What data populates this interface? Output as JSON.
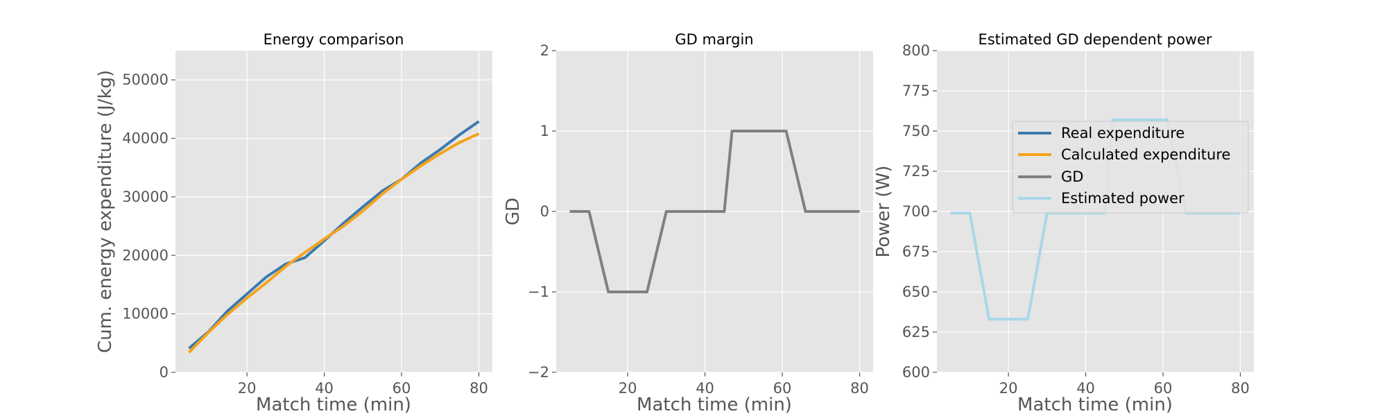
{
  "chart_data": [
    {
      "type": "line",
      "title": "Energy comparison",
      "xlabel": "Match time (min)",
      "ylabel": "Cum. energy expenditure (J/kg)",
      "xlim": [
        1.5,
        83.5
      ],
      "ylim": [
        0,
        55000
      ],
      "xticks": [
        20,
        40,
        60,
        80
      ],
      "xtick_labels": [
        "20",
        "40",
        "60",
        "80"
      ],
      "yticks": [
        0,
        10000,
        20000,
        30000,
        40000,
        50000
      ],
      "ytick_labels": [
        "0",
        "10000",
        "20000",
        "30000",
        "40000",
        "50000"
      ],
      "grid": true,
      "series": [
        {
          "name": "Real expenditure",
          "color": "#3a7ab0",
          "x": [
            5,
            10,
            15,
            20,
            25,
            30,
            35,
            40,
            45,
            50,
            55,
            60,
            65,
            70,
            75,
            80
          ],
          "y": [
            4100,
            6900,
            10500,
            13400,
            16300,
            18500,
            19600,
            22500,
            25500,
            28300,
            31000,
            33000,
            35800,
            38100,
            40600,
            42900
          ]
        },
        {
          "name": "Calculated expenditure",
          "color": "#f5a31a",
          "x": [
            5,
            10,
            15,
            20,
            25,
            30,
            35,
            40,
            45,
            50,
            55,
            60,
            65,
            70,
            75,
            80
          ],
          "y": [
            3400,
            6800,
            9900,
            12700,
            15300,
            18100,
            20500,
            22800,
            25000,
            27600,
            30500,
            33000,
            35300,
            37400,
            39300,
            40800
          ]
        }
      ]
    },
    {
      "type": "line",
      "title": "GD margin",
      "xlabel": "Match time (min)",
      "ylabel": "GD",
      "xlim": [
        1.5,
        83.5
      ],
      "ylim": [
        -2,
        2
      ],
      "xticks": [
        20,
        40,
        60,
        80
      ],
      "xtick_labels": [
        "20",
        "40",
        "60",
        "80"
      ],
      "yticks": [
        -2,
        -1,
        0,
        1,
        2
      ],
      "ytick_labels": [
        "−2",
        "−1",
        "0",
        "1",
        "2"
      ],
      "grid": true,
      "series": [
        {
          "name": "GD",
          "color": "#808080",
          "x": [
            5,
            10,
            15,
            20,
            25,
            30,
            35,
            40,
            45,
            47,
            50,
            55,
            61,
            66,
            70,
            75,
            80
          ],
          "y": [
            0,
            0,
            -1,
            -1,
            -1,
            0,
            0,
            0,
            0,
            1,
            1,
            1,
            1,
            0,
            0,
            0,
            0
          ]
        }
      ]
    },
    {
      "type": "line",
      "title": "Estimated GD dependent power",
      "xlabel": "Match time (min)",
      "ylabel": "Power (W)",
      "xlim": [
        1.5,
        83.5
      ],
      "ylim": [
        600,
        800
      ],
      "xticks": [
        20,
        40,
        60,
        80
      ],
      "xtick_labels": [
        "20",
        "40",
        "60",
        "80"
      ],
      "yticks": [
        600,
        625,
        650,
        675,
        700,
        725,
        750,
        775,
        800
      ],
      "ytick_labels": [
        "600",
        "625",
        "650",
        "675",
        "700",
        "725",
        "750",
        "775",
        "800"
      ],
      "grid": true,
      "legend": {
        "placement": "upper-right",
        "entries": [
          {
            "label": "Real expenditure",
            "color": "#3a7ab0"
          },
          {
            "label": "Calculated expenditure",
            "color": "#f5a31a"
          },
          {
            "label": "GD",
            "color": "#808080"
          },
          {
            "label": "Estimated power",
            "color": "#a8d8e8"
          }
        ]
      },
      "series": [
        {
          "name": "Estimated power",
          "color": "#a8d8e8",
          "x": [
            5,
            10,
            15,
            20,
            25,
            30,
            35,
            40,
            45,
            47,
            50,
            55,
            61,
            66,
            70,
            75,
            80
          ],
          "y": [
            699,
            699,
            633,
            633,
            633,
            699,
            699,
            699,
            699,
            757,
            757,
            757,
            757,
            699,
            699,
            699,
            699
          ]
        }
      ]
    }
  ]
}
